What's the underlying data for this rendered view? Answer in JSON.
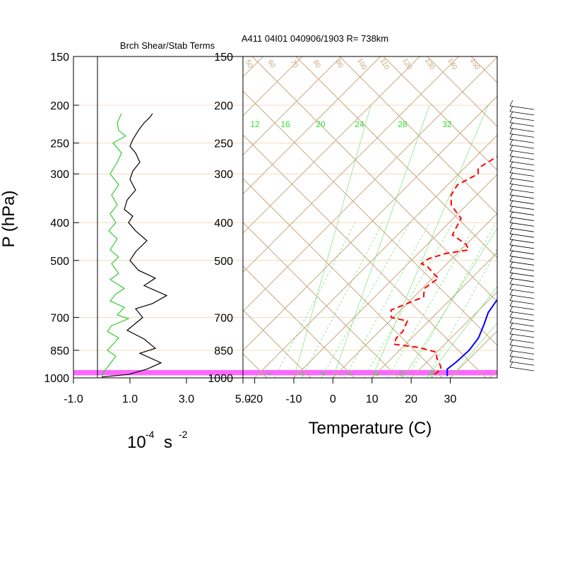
{
  "header": {
    "left_title": "Brch Shear/Stab Terms",
    "station_info": "A411 04I01 040906/1903 R= 738km"
  },
  "colors": {
    "isobar": "#f0dcc0",
    "skew": "#c8a880",
    "mixing": "#66dd66",
    "temperature": "#0000ff",
    "dewpoint": "#ff0000",
    "shear": "#000000",
    "stability": "#33cc33",
    "surface_band": "#ff66ff"
  },
  "chart_data": [
    {
      "type": "line",
      "title": "Brch Shear/Stab Terms",
      "ylabel": "P (hPa)",
      "xlabel_base": "10",
      "xlabel_exp": "-4",
      "xlabel_unit": "s",
      "xlabel_unit_exp": "-2",
      "xlim": [
        -1.0,
        5.0
      ],
      "ylim": [
        1000,
        150
      ],
      "y_scale": "log-pressure",
      "xticks": [
        "-1.0",
        "1.0",
        "3.0",
        "5.0"
      ],
      "yticks": [
        "150",
        "200",
        "250",
        "300",
        "400",
        "500",
        "700",
        "850",
        "1000"
      ],
      "series": [
        {
          "color": "#000000",
          "points": [
            [
              1.8,
              210
            ],
            [
              1.7,
              215
            ],
            [
              1.5,
              222
            ],
            [
              1.3,
              232
            ],
            [
              1.1,
              245
            ],
            [
              1.0,
              255
            ],
            [
              1.2,
              265
            ],
            [
              1.35,
              280
            ],
            [
              1.1,
              295
            ],
            [
              1.0,
              310
            ],
            [
              1.2,
              330
            ],
            [
              0.9,
              350
            ],
            [
              0.8,
              370
            ],
            [
              1.1,
              385
            ],
            [
              0.95,
              400
            ],
            [
              1.2,
              420
            ],
            [
              1.6,
              445
            ],
            [
              1.2,
              475
            ],
            [
              1.0,
              500
            ],
            [
              1.3,
              530
            ],
            [
              1.9,
              555
            ],
            [
              1.5,
              580
            ],
            [
              2.3,
              615
            ],
            [
              1.8,
              645
            ],
            [
              1.2,
              665
            ],
            [
              1.45,
              700
            ],
            [
              1.15,
              730
            ],
            [
              0.9,
              755
            ],
            [
              1.5,
              795
            ],
            [
              1.9,
              840
            ],
            [
              1.35,
              865
            ],
            [
              2.1,
              915
            ],
            [
              1.6,
              950
            ],
            [
              0.95,
              980
            ],
            [
              0.0,
              995
            ]
          ]
        },
        {
          "color": "#33cc33",
          "points": [
            [
              0.7,
              210
            ],
            [
              0.55,
              222
            ],
            [
              0.6,
              232
            ],
            [
              0.85,
              240
            ],
            [
              0.4,
              250
            ],
            [
              0.7,
              265
            ],
            [
              0.55,
              280
            ],
            [
              0.3,
              300
            ],
            [
              0.6,
              320
            ],
            [
              0.35,
              340
            ],
            [
              0.55,
              360
            ],
            [
              0.3,
              380
            ],
            [
              0.5,
              400
            ],
            [
              0.25,
              420
            ],
            [
              0.55,
              440
            ],
            [
              0.3,
              470
            ],
            [
              0.6,
              490
            ],
            [
              0.35,
              510
            ],
            [
              0.6,
              540
            ],
            [
              0.3,
              560
            ],
            [
              0.8,
              590
            ],
            [
              0.5,
              610
            ],
            [
              0.3,
              635
            ],
            [
              0.8,
              660
            ],
            [
              0.55,
              690
            ],
            [
              0.95,
              705
            ],
            [
              0.35,
              735
            ],
            [
              0.2,
              760
            ],
            [
              0.6,
              790
            ],
            [
              0.4,
              820
            ],
            [
              0.2,
              850
            ],
            [
              0.5,
              880
            ],
            [
              0.3,
              920
            ],
            [
              0.1,
              960
            ],
            [
              0.0,
              995
            ]
          ]
        }
      ]
    },
    {
      "type": "line",
      "xlabel": "Temperature (C)",
      "xlim": [
        -23,
        42
      ],
      "ylim": [
        1000,
        150
      ],
      "y_scale": "log-pressure",
      "skew": "skew-T",
      "xticks": [
        "-20",
        "-10",
        "0",
        "10",
        "20",
        "30"
      ],
      "yticks": [
        "150",
        "200",
        "250",
        "300",
        "400",
        "500",
        "700",
        "850",
        "1000"
      ],
      "mixing_ratio_top_labels": [
        "12",
        "16",
        "20",
        "24",
        "28",
        "32"
      ],
      "mixing_ratio_bottom_labels": [
        "1",
        "2",
        "3",
        "5",
        "8",
        "12",
        "20"
      ],
      "dry_adiabat_labels": [
        "50",
        "60",
        "70",
        "80",
        "90",
        "100",
        "110",
        "120",
        "130",
        "140",
        "150"
      ],
      "surface_band_hpa": [
        955,
        985
      ],
      "series": [
        {
          "name": "Temperature",
          "color": "#0000ff",
          "points": [
            [
              -0.2,
              205
            ],
            [
              0.8,
              220
            ],
            [
              2.3,
              240
            ],
            [
              3.8,
              260
            ],
            [
              5.2,
              280
            ],
            [
              6.8,
              300
            ],
            [
              8.8,
              325
            ],
            [
              10.8,
              350
            ],
            [
              12.5,
              375
            ],
            [
              14.2,
              400
            ],
            [
              15.8,
              430
            ],
            [
              16.8,
              455
            ],
            [
              18.2,
              480
            ],
            [
              19.5,
              510
            ],
            [
              20.8,
              545
            ],
            [
              21.5,
              580
            ],
            [
              21.8,
              620
            ],
            [
              23.0,
              680
            ],
            [
              25.0,
              730
            ],
            [
              27.0,
              790
            ],
            [
              27.8,
              850
            ],
            [
              27.5,
              910
            ],
            [
              27.0,
              950
            ],
            [
              28.8,
              990
            ]
          ]
        },
        {
          "name": "Dewpoint",
          "color": "#ff0000",
          "points": [
            [
              -9.0,
              227
            ],
            [
              -11.5,
              240
            ],
            [
              -14.0,
              255
            ],
            [
              -14.5,
              270
            ],
            [
              -16.5,
              290
            ],
            [
              -15.0,
              300
            ],
            [
              -17.5,
              320
            ],
            [
              -16.5,
              340
            ],
            [
              -14.0,
              360
            ],
            [
              -11.0,
              375
            ],
            [
              -8.0,
              390
            ],
            [
              -7.0,
              410
            ],
            [
              -6.0,
              430
            ],
            [
              0.0,
              455
            ],
            [
              2.0,
              470
            ],
            [
              -3.0,
              480
            ],
            [
              -6.0,
              495
            ],
            [
              -6.5,
              510
            ],
            [
              -4.0,
              520
            ],
            [
              -1.0,
              540
            ],
            [
              1.5,
              555
            ],
            [
              0.5,
              590
            ],
            [
              2.5,
              620
            ],
            [
              0.0,
              645
            ],
            [
              -2.5,
              670
            ],
            [
              -0.5,
              700
            ],
            [
              4.5,
              715
            ],
            [
              6.0,
              760
            ],
            [
              6.0,
              790
            ],
            [
              7.0,
              820
            ],
            [
              14.0,
              835
            ],
            [
              20.0,
              860
            ],
            [
              21.5,
              890
            ],
            [
              24.0,
              925
            ],
            [
              25.5,
              950
            ],
            [
              25.0,
              985
            ]
          ]
        }
      ]
    }
  ],
  "wind_barbs": {
    "count": 48
  }
}
